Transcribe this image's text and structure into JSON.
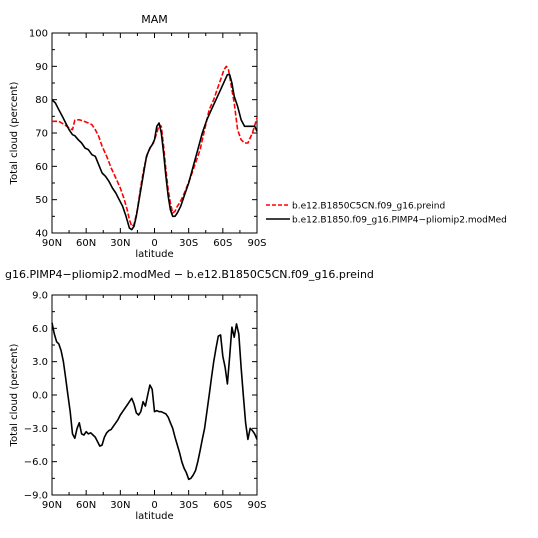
{
  "chart_data": [
    {
      "type": "line",
      "title": "MAM",
      "xlabel": "latitude",
      "ylabel": "Total cloud (percent)",
      "x_ticks": [
        "90N",
        "60N",
        "30N",
        "0",
        "30S",
        "60S",
        "90S"
      ],
      "x_tick_values": [
        -90,
        -60,
        -30,
        0,
        30,
        60,
        90
      ],
      "xlim": [
        -90,
        90
      ],
      "ylim": [
        40,
        100
      ],
      "y_ticks": [
        "40",
        "50",
        "60",
        "70",
        "80",
        "90",
        "100"
      ],
      "y_tick_values": [
        40,
        50,
        60,
        70,
        80,
        90,
        100
      ],
      "grid": false,
      "legend_position": "right, outside plot",
      "series": [
        {
          "name": "b.e12.B1850C5CN.f09_g16.preind",
          "color": "#ff0000",
          "style": "dashed",
          "x": [
            -90,
            -84,
            -79,
            -75,
            -72,
            -70,
            -66,
            -62,
            -58,
            -55,
            -52,
            -49,
            -46,
            -42,
            -38,
            -34,
            -30,
            -27,
            -24,
            -22,
            -20,
            -18,
            -15,
            -12,
            -9,
            -6,
            -3,
            -1,
            0,
            2,
            4,
            6,
            8,
            10,
            12,
            14,
            16,
            18,
            20,
            22,
            25,
            28,
            32,
            36,
            40,
            44,
            48,
            52,
            55,
            58,
            61,
            63,
            65,
            67,
            70,
            73,
            76,
            79,
            82,
            86,
            90
          ],
          "y": [
            73.5,
            73.5,
            72.5,
            71.5,
            71,
            73.8,
            74,
            73.5,
            73,
            72.5,
            71,
            69,
            66,
            63,
            59.5,
            56.5,
            53.5,
            50.5,
            47,
            44,
            42,
            42.5,
            47,
            54,
            60,
            64,
            66,
            67,
            68,
            70,
            72.5,
            72,
            66,
            59,
            53,
            49,
            46,
            46.5,
            48,
            49,
            51,
            53.5,
            57,
            61,
            65,
            71,
            77,
            80,
            83,
            86,
            89,
            90,
            89,
            85,
            79,
            71,
            68,
            67,
            67,
            70,
            74.5
          ]
        },
        {
          "name": "b.e12.B1850.f09_g16.PIMP4−pliomip2.modMed",
          "color": "#000000",
          "style": "solid",
          "x": [
            -90,
            -87,
            -84,
            -81,
            -78,
            -75,
            -72,
            -70,
            -67,
            -64,
            -61,
            -58,
            -55,
            -52,
            -49,
            -46,
            -43,
            -40,
            -37,
            -34,
            -31,
            -28,
            -25,
            -22,
            -20,
            -18,
            -16,
            -13,
            -10,
            -7,
            -4,
            -2,
            0,
            2,
            4,
            6,
            8,
            10,
            12,
            14,
            16,
            18,
            20,
            23,
            26,
            30,
            34,
            38,
            42,
            46,
            50,
            54,
            58,
            62,
            64,
            66,
            68,
            70,
            73,
            76,
            79,
            82,
            85,
            88,
            90
          ],
          "y": [
            80,
            79,
            77,
            75,
            73,
            71,
            69.5,
            69.2,
            68,
            67,
            65.5,
            65,
            63.5,
            63,
            60.5,
            58,
            57,
            55.5,
            53.5,
            52,
            50,
            48,
            45,
            41.5,
            41,
            42,
            45,
            51,
            57,
            63,
            65.5,
            66.5,
            68,
            72,
            73,
            70,
            64,
            57,
            51,
            47,
            45,
            45,
            46,
            48,
            51,
            55,
            60,
            65,
            70,
            74,
            77,
            80,
            83,
            86,
            87.5,
            87.5,
            85,
            81,
            78,
            74,
            72,
            72,
            72,
            72,
            70.5
          ]
        }
      ]
    },
    {
      "type": "line",
      "title": "g16.PIMP4−pliomip2.modMed  −  b.e12.B1850C5CN.f09_g16.preind",
      "xlabel": "latitude",
      "ylabel": "Total cloud (percent)",
      "x_ticks": [
        "90N",
        "60N",
        "30N",
        "0",
        "30S",
        "60S",
        "90S"
      ],
      "x_tick_values": [
        -90,
        -60,
        -30,
        0,
        30,
        60,
        90
      ],
      "xlim": [
        -90,
        90
      ],
      "ylim": [
        -9,
        9
      ],
      "y_ticks": [
        "−9.0",
        "−6.0",
        "−3.0",
        "0.0",
        "3.0",
        "6.0",
        "9.0"
      ],
      "y_tick_values": [
        -9,
        -6,
        -3,
        0,
        3,
        6,
        9
      ],
      "grid": false,
      "series": [
        {
          "color": "#000000",
          "style": "solid",
          "x": [
            -90,
            -88,
            -86,
            -84,
            -82,
            -80,
            -78,
            -76,
            -74,
            -72,
            -70,
            -68,
            -66,
            -64,
            -62,
            -60,
            -58,
            -56,
            -54,
            -52,
            -50,
            -48,
            -46,
            -44,
            -42,
            -40,
            -38,
            -36,
            -34,
            -32,
            -30,
            -28,
            -26,
            -24,
            -22,
            -20,
            -18,
            -16,
            -14,
            -12,
            -10,
            -8,
            -6,
            -4,
            -2,
            0,
            2,
            4,
            6,
            8,
            10,
            12,
            14,
            16,
            18,
            20,
            22,
            24,
            26,
            28,
            30,
            32,
            34,
            36,
            38,
            40,
            42,
            44,
            46,
            48,
            50,
            52,
            54,
            56,
            58,
            60,
            62,
            64,
            66,
            68,
            70,
            72,
            74,
            76,
            78,
            80,
            82,
            84,
            86,
            88,
            90
          ],
          "y": [
            6.5,
            5.5,
            4.8,
            4.6,
            4.0,
            3.0,
            1.5,
            0.0,
            -1.5,
            -3.5,
            -3.9,
            -3.0,
            -2.5,
            -3.5,
            -3.6,
            -3.3,
            -3.5,
            -3.4,
            -3.6,
            -3.8,
            -4.2,
            -4.6,
            -4.5,
            -3.8,
            -3.4,
            -3.2,
            -3.1,
            -2.8,
            -2.5,
            -2.2,
            -1.8,
            -1.5,
            -1.2,
            -0.9,
            -0.6,
            -0.3,
            -0.8,
            -1.6,
            -1.8,
            -1.5,
            -0.6,
            -1.0,
            0.0,
            0.9,
            0.5,
            -1.5,
            -1.4,
            -1.5,
            -1.5,
            -1.6,
            -1.7,
            -2.0,
            -2.5,
            -3.0,
            -3.8,
            -4.5,
            -5.2,
            -6.0,
            -6.6,
            -7.0,
            -7.6,
            -7.5,
            -7.2,
            -6.8,
            -6.0,
            -5.0,
            -4.0,
            -3.0,
            -1.5,
            0.0,
            1.5,
            3.0,
            4.2,
            5.3,
            5.4,
            3.5,
            2.5,
            1.0,
            3.5,
            6.1,
            5.2,
            6.4,
            5.5,
            2.5,
            0.0,
            -2.5,
            -4.0,
            -3.0,
            -3.2,
            -3.5,
            -4.0
          ]
        }
      ]
    }
  ]
}
